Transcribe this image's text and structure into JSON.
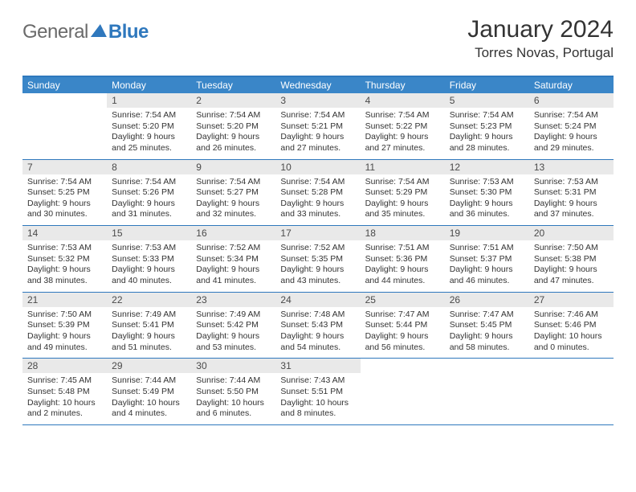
{
  "brand": {
    "general": "General",
    "blue": "Blue"
  },
  "title": "January 2024",
  "location": "Torres Novas, Portugal",
  "colors": {
    "header_bg": "#3a86c8",
    "border": "#2f78bd",
    "daynum_bg": "#e9e9e9",
    "text": "#333333",
    "logo_gray": "#6a6a6a"
  },
  "weekdays": [
    "Sunday",
    "Monday",
    "Tuesday",
    "Wednesday",
    "Thursday",
    "Friday",
    "Saturday"
  ],
  "layout": {
    "first_weekday_index": 1,
    "cols": 7
  },
  "days": [
    {
      "n": "1",
      "sunrise": "Sunrise: 7:54 AM",
      "sunset": "Sunset: 5:20 PM",
      "day1": "Daylight: 9 hours",
      "day2": "and 25 minutes."
    },
    {
      "n": "2",
      "sunrise": "Sunrise: 7:54 AM",
      "sunset": "Sunset: 5:20 PM",
      "day1": "Daylight: 9 hours",
      "day2": "and 26 minutes."
    },
    {
      "n": "3",
      "sunrise": "Sunrise: 7:54 AM",
      "sunset": "Sunset: 5:21 PM",
      "day1": "Daylight: 9 hours",
      "day2": "and 27 minutes."
    },
    {
      "n": "4",
      "sunrise": "Sunrise: 7:54 AM",
      "sunset": "Sunset: 5:22 PM",
      "day1": "Daylight: 9 hours",
      "day2": "and 27 minutes."
    },
    {
      "n": "5",
      "sunrise": "Sunrise: 7:54 AM",
      "sunset": "Sunset: 5:23 PM",
      "day1": "Daylight: 9 hours",
      "day2": "and 28 minutes."
    },
    {
      "n": "6",
      "sunrise": "Sunrise: 7:54 AM",
      "sunset": "Sunset: 5:24 PM",
      "day1": "Daylight: 9 hours",
      "day2": "and 29 minutes."
    },
    {
      "n": "7",
      "sunrise": "Sunrise: 7:54 AM",
      "sunset": "Sunset: 5:25 PM",
      "day1": "Daylight: 9 hours",
      "day2": "and 30 minutes."
    },
    {
      "n": "8",
      "sunrise": "Sunrise: 7:54 AM",
      "sunset": "Sunset: 5:26 PM",
      "day1": "Daylight: 9 hours",
      "day2": "and 31 minutes."
    },
    {
      "n": "9",
      "sunrise": "Sunrise: 7:54 AM",
      "sunset": "Sunset: 5:27 PM",
      "day1": "Daylight: 9 hours",
      "day2": "and 32 minutes."
    },
    {
      "n": "10",
      "sunrise": "Sunrise: 7:54 AM",
      "sunset": "Sunset: 5:28 PM",
      "day1": "Daylight: 9 hours",
      "day2": "and 33 minutes."
    },
    {
      "n": "11",
      "sunrise": "Sunrise: 7:54 AM",
      "sunset": "Sunset: 5:29 PM",
      "day1": "Daylight: 9 hours",
      "day2": "and 35 minutes."
    },
    {
      "n": "12",
      "sunrise": "Sunrise: 7:53 AM",
      "sunset": "Sunset: 5:30 PM",
      "day1": "Daylight: 9 hours",
      "day2": "and 36 minutes."
    },
    {
      "n": "13",
      "sunrise": "Sunrise: 7:53 AM",
      "sunset": "Sunset: 5:31 PM",
      "day1": "Daylight: 9 hours",
      "day2": "and 37 minutes."
    },
    {
      "n": "14",
      "sunrise": "Sunrise: 7:53 AM",
      "sunset": "Sunset: 5:32 PM",
      "day1": "Daylight: 9 hours",
      "day2": "and 38 minutes."
    },
    {
      "n": "15",
      "sunrise": "Sunrise: 7:53 AM",
      "sunset": "Sunset: 5:33 PM",
      "day1": "Daylight: 9 hours",
      "day2": "and 40 minutes."
    },
    {
      "n": "16",
      "sunrise": "Sunrise: 7:52 AM",
      "sunset": "Sunset: 5:34 PM",
      "day1": "Daylight: 9 hours",
      "day2": "and 41 minutes."
    },
    {
      "n": "17",
      "sunrise": "Sunrise: 7:52 AM",
      "sunset": "Sunset: 5:35 PM",
      "day1": "Daylight: 9 hours",
      "day2": "and 43 minutes."
    },
    {
      "n": "18",
      "sunrise": "Sunrise: 7:51 AM",
      "sunset": "Sunset: 5:36 PM",
      "day1": "Daylight: 9 hours",
      "day2": "and 44 minutes."
    },
    {
      "n": "19",
      "sunrise": "Sunrise: 7:51 AM",
      "sunset": "Sunset: 5:37 PM",
      "day1": "Daylight: 9 hours",
      "day2": "and 46 minutes."
    },
    {
      "n": "20",
      "sunrise": "Sunrise: 7:50 AM",
      "sunset": "Sunset: 5:38 PM",
      "day1": "Daylight: 9 hours",
      "day2": "and 47 minutes."
    },
    {
      "n": "21",
      "sunrise": "Sunrise: 7:50 AM",
      "sunset": "Sunset: 5:39 PM",
      "day1": "Daylight: 9 hours",
      "day2": "and 49 minutes."
    },
    {
      "n": "22",
      "sunrise": "Sunrise: 7:49 AM",
      "sunset": "Sunset: 5:41 PM",
      "day1": "Daylight: 9 hours",
      "day2": "and 51 minutes."
    },
    {
      "n": "23",
      "sunrise": "Sunrise: 7:49 AM",
      "sunset": "Sunset: 5:42 PM",
      "day1": "Daylight: 9 hours",
      "day2": "and 53 minutes."
    },
    {
      "n": "24",
      "sunrise": "Sunrise: 7:48 AM",
      "sunset": "Sunset: 5:43 PM",
      "day1": "Daylight: 9 hours",
      "day2": "and 54 minutes."
    },
    {
      "n": "25",
      "sunrise": "Sunrise: 7:47 AM",
      "sunset": "Sunset: 5:44 PM",
      "day1": "Daylight: 9 hours",
      "day2": "and 56 minutes."
    },
    {
      "n": "26",
      "sunrise": "Sunrise: 7:47 AM",
      "sunset": "Sunset: 5:45 PM",
      "day1": "Daylight: 9 hours",
      "day2": "and 58 minutes."
    },
    {
      "n": "27",
      "sunrise": "Sunrise: 7:46 AM",
      "sunset": "Sunset: 5:46 PM",
      "day1": "Daylight: 10 hours",
      "day2": "and 0 minutes."
    },
    {
      "n": "28",
      "sunrise": "Sunrise: 7:45 AM",
      "sunset": "Sunset: 5:48 PM",
      "day1": "Daylight: 10 hours",
      "day2": "and 2 minutes."
    },
    {
      "n": "29",
      "sunrise": "Sunrise: 7:44 AM",
      "sunset": "Sunset: 5:49 PM",
      "day1": "Daylight: 10 hours",
      "day2": "and 4 minutes."
    },
    {
      "n": "30",
      "sunrise": "Sunrise: 7:44 AM",
      "sunset": "Sunset: 5:50 PM",
      "day1": "Daylight: 10 hours",
      "day2": "and 6 minutes."
    },
    {
      "n": "31",
      "sunrise": "Sunrise: 7:43 AM",
      "sunset": "Sunset: 5:51 PM",
      "day1": "Daylight: 10 hours",
      "day2": "and 8 minutes."
    }
  ]
}
